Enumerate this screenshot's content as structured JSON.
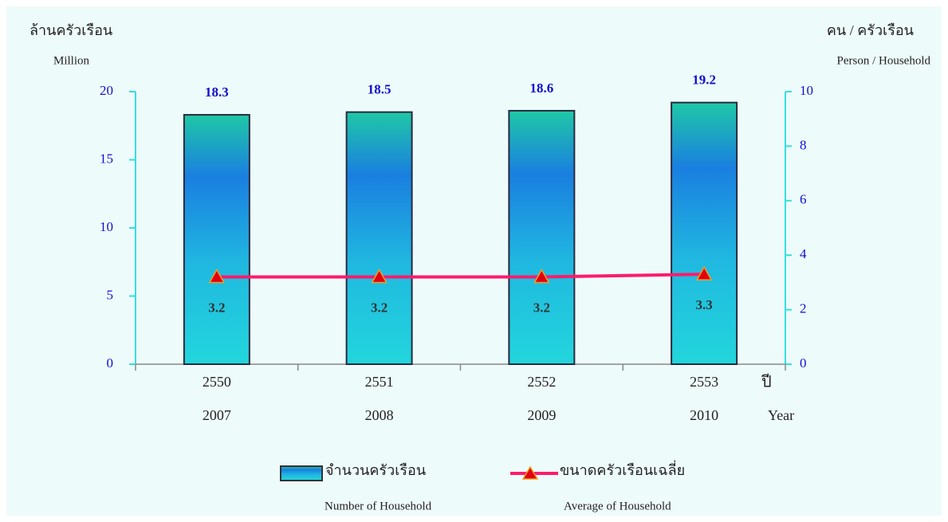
{
  "chart_data": {
    "type": "bar",
    "y_axis_title": "ล้านครัวเรือน",
    "y_axis_unit": "Million",
    "y2_axis_title": "คน / ครัวเรือน",
    "y2_axis_unit": "Person / Household",
    "x_axis_title": "ปี",
    "x_axis_title_en": "Year",
    "categories": [
      "2550",
      "2551",
      "2552",
      "2553"
    ],
    "categories_en": [
      "2007",
      "2008",
      "2009",
      "2010"
    ],
    "series": [
      {
        "name": "จำนวนครัวเรือน",
        "name_en": "Number of Household",
        "type": "bar",
        "color": "#1a7fe0",
        "values": [
          18.3,
          18.5,
          18.6,
          19.2
        ]
      },
      {
        "name": "ขนาดครัวเรือนเฉลี่ย",
        "name_en": "Average of Household",
        "type": "line",
        "axis": "y2",
        "color": "#ff1a6c",
        "values": [
          3.2,
          3.2,
          3.2,
          3.3
        ]
      }
    ],
    "ylim": [
      0,
      20
    ],
    "yticks": [
      0,
      5,
      10,
      15,
      20
    ],
    "y2lim": [
      0,
      10
    ],
    "y2ticks": [
      0,
      2,
      4,
      6,
      8,
      10
    ],
    "legend": "bottom"
  }
}
